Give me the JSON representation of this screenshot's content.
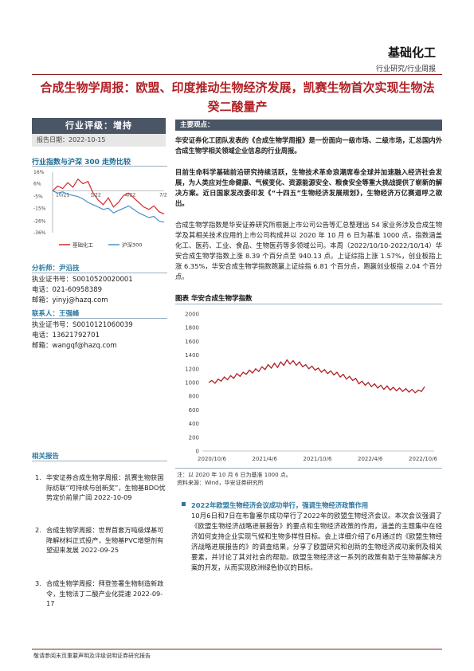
{
  "header": {
    "category": "基础化工",
    "subtitle": "行业研究/行业周报"
  },
  "title": "合成生物学周报：欧盟、印度推动生物经济发展，凯赛生物首次实现生物法癸二酸量产",
  "sidebar": {
    "rating": "行业评级：增持",
    "report_date": "报告日期：2022-10-15",
    "index_title": "行业指数与沪深 300 走势比较",
    "analyst_label": "分析师：尹沿技",
    "analyst_lines": [
      "执业证书号：S0010520020001",
      "电话：021-60958389",
      "邮箱：yinyj@hazq.com"
    ],
    "contact_label": "联系人：王强峰",
    "contact_lines": [
      "执业证书号：S0010121060039",
      "电话：13621792701",
      "邮箱：wangqf@hazq.com"
    ],
    "related_title": "相关报告",
    "related": [
      {
        "num": "1.",
        "text": "华安证券合成生物学周报：凯赛生物获国际纺联“可持续与创新奖”，生物基BDO优势定价前景广阔 2022-10-09"
      },
      {
        "num": "2.",
        "text": "合成生物学周报：世界首套万吨级煤基可降解材料正式投产，生物基PVC增塑剂有望迎来发展 2022-09-25"
      },
      {
        "num": "3.",
        "text": "合成生物学周报：拜登签署生物制造新政令，生物法丁二酸产业化提速 2022-09-17"
      }
    ]
  },
  "mini_chart": {
    "chart_data": {
      "type": "line",
      "yticks": [
        "16%",
        "6%",
        "-5%",
        "-15%",
        "-26%",
        "-36%"
      ],
      "xticks": [
        "10/21",
        "1/22",
        "4/22",
        "7/22"
      ],
      "series": [
        {
          "name": "基础化工",
          "color": "#d42a2a",
          "values": [
            0,
            4,
            2,
            7,
            3,
            10,
            6,
            8,
            -2,
            -8,
            -12,
            -6,
            -14,
            -10,
            -4,
            -2,
            -6,
            -10,
            -14,
            -16,
            -13,
            -18,
            -20
          ]
        },
        {
          "name": "沪深300",
          "color": "#4a90c8",
          "values": [
            0,
            -2,
            -1,
            -3,
            -4,
            -5,
            -7,
            -10,
            -12,
            -14,
            -16,
            -15,
            -19,
            -17,
            -15,
            -13,
            -16,
            -19,
            -21,
            -23,
            -22,
            -26,
            -27
          ]
        }
      ],
      "ylim": [
        -36,
        16
      ]
    }
  },
  "main_head": "主要观点：",
  "paras": [
    {
      "bold": true,
      "text": "华安证券化工团队发表的《合成生物学周报》是一份面向一级市场、二级市场，汇总国内外合成生物学相关领域企业信息的行业周报。"
    },
    {
      "bold": true,
      "text": "目前生命科学基础前沿研究持续活跃，生物技术革命浪潮席卷全球并加速融入经济社会发展，为人类应对生命健康、气候变化、资源能源安全、粮食安全等重大挑战提供了崭新的解决方案。近日国家发改委印发《“十四五”生物经济发展规划》，生物经济万亿赛道呼之欲出。"
    },
    {
      "bold": false,
      "text": "合成生物学指数是华安证券研究所根据上市公司公告等汇总整理出 54 家业务涉及合成生物学及其相关技术应用的上市公司构成并以 2020 年 10 月 6 日为基准 1000 点，指数涵盖化工、医药、工业、食品、生物医药等多领域公司。本周（2022/10/10-2022/10/14）华安合成生物学指数上涨 8.39 个百分点至 940.13 点。上证综指上涨 1.57%，创业板指上涨 6.35%，华安合成生物学指数跑赢上证综指 6.81 个百分点，跑赢创业板指 2.04 个百分点。"
    }
  ],
  "figure": {
    "title": "图表  华安合成生物学指数",
    "note": "注：以 2020 年 10 月 6 日为基准 1000 点。",
    "source": "资料来源：Wind，华安证券研究所"
  },
  "main_chart": {
    "chart_data": {
      "type": "line",
      "yticks": [
        "2000",
        "1800",
        "1600",
        "1400",
        "1200",
        "1000",
        "800",
        "600",
        "400",
        "200",
        "0"
      ],
      "xticks": [
        "2020/10/6",
        "2021/4/6",
        "2021/10/6",
        "2022/4/6",
        "2022/10/6"
      ],
      "ylim": [
        0,
        2000
      ],
      "series": [
        {
          "name": "华安合成生物学指数",
          "color": "#b01f24",
          "values": [
            1000,
            1030,
            990,
            1050,
            1020,
            1080,
            1040,
            1100,
            1060,
            1130,
            1090,
            1150,
            1120,
            1180,
            1140,
            1200,
            1160,
            1230,
            1190,
            1260,
            1210,
            1280,
            1220,
            1300,
            1250,
            1330,
            1270,
            1320,
            1250,
            1300,
            1230,
            1260,
            1200,
            1240,
            1180,
            1210,
            1150,
            1190,
            1130,
            1170,
            1110,
            1150,
            1080,
            1120,
            1050,
            1090,
            1030,
            1060,
            980,
            1020,
            960,
            1000,
            940,
            980,
            920,
            960,
            900,
            950,
            890,
            930,
            880,
            920,
            870,
            910,
            860,
            900,
            850,
            890,
            870,
            940
          ]
        }
      ]
    }
  },
  "bullet_head": "2022年欧盟生物经济会议成功举行，强调生物经济政策作用",
  "bullet_para": "10月6日和7日在布鲁塞尔成功举行了2022年的欧盟生物经济会议。本次会议强调了《欧盟生物经济战略进展报告》的要点和生物经济政策的作用，涵盖的主题集中在经济如何支持企业实现气候和生物多样性目标。会上详细介绍了6月通过的《欧盟生物经济战略进展报告的》的调查结果，分享了欧盟研究和创新的生物经济成功案例及相关要素，并讨论了其对社会的帮助。欧盟生物经济这一系列的政策有助于生物基解决方案的开发，从而实现欧洲绿色协议的目标。",
  "footer": "敬请参阅末页重要声明及评级说明证券研究报告"
}
